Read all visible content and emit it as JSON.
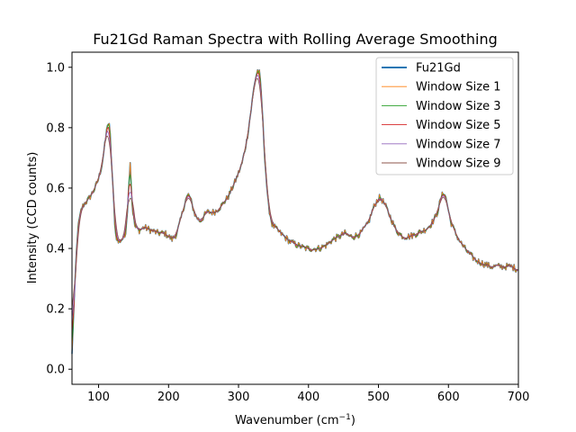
{
  "chart_data": {
    "type": "line",
    "title": "Fu21Gd Raman Spectra with Rolling Average Smoothing",
    "xlabel_base": "Wavenumber (cm",
    "xlabel_sup": "−1",
    "xlabel_end": ")",
    "ylabel": "Intensity (CCD counts)",
    "xlim": [
      62,
      700
    ],
    "ylim": [
      -0.05,
      1.05
    ],
    "xticks": [
      100,
      200,
      300,
      400,
      500,
      600,
      700
    ],
    "yticks": [
      0.0,
      0.2,
      0.4,
      0.6,
      0.8,
      1.0
    ],
    "ytick_labels": [
      "0.0",
      "0.2",
      "0.4",
      "0.6",
      "0.8",
      "1.0"
    ],
    "grid": false,
    "legend_position": "top-right",
    "base_curve": {
      "x": [
        62,
        65,
        68,
        71,
        75,
        80,
        85,
        90,
        95,
        100,
        105,
        110,
        113,
        116,
        120,
        124,
        128,
        133,
        138,
        142,
        145,
        148,
        152,
        158,
        165,
        175,
        185,
        195,
        205,
        212,
        218,
        224,
        229,
        233,
        238,
        245,
        255,
        265,
        275,
        285,
        295,
        305,
        312,
        318,
        323,
        327,
        330,
        333,
        337,
        342,
        348,
        355,
        365,
        375,
        385,
        395,
        405,
        415,
        425,
        435,
        445,
        452,
        458,
        465,
        475,
        485,
        492,
        498,
        503,
        510,
        518,
        525,
        535,
        545,
        555,
        565,
        575,
        583,
        590,
        594,
        598,
        603,
        610,
        620,
        630,
        640,
        650,
        660,
        670,
        680,
        690,
        700
      ],
      "y": [
        0.05,
        0.22,
        0.38,
        0.48,
        0.53,
        0.55,
        0.56,
        0.58,
        0.6,
        0.63,
        0.68,
        0.76,
        0.82,
        0.8,
        0.62,
        0.45,
        0.42,
        0.43,
        0.44,
        0.55,
        0.7,
        0.54,
        0.47,
        0.46,
        0.47,
        0.46,
        0.45,
        0.45,
        0.43,
        0.45,
        0.5,
        0.56,
        0.58,
        0.55,
        0.51,
        0.49,
        0.52,
        0.52,
        0.54,
        0.57,
        0.62,
        0.68,
        0.76,
        0.86,
        0.95,
        0.99,
        0.98,
        0.9,
        0.72,
        0.55,
        0.48,
        0.46,
        0.44,
        0.42,
        0.41,
        0.4,
        0.4,
        0.4,
        0.41,
        0.43,
        0.44,
        0.45,
        0.44,
        0.44,
        0.45,
        0.48,
        0.53,
        0.56,
        0.57,
        0.54,
        0.5,
        0.46,
        0.44,
        0.44,
        0.45,
        0.46,
        0.48,
        0.51,
        0.57,
        0.59,
        0.55,
        0.49,
        0.45,
        0.41,
        0.38,
        0.36,
        0.35,
        0.34,
        0.34,
        0.34,
        0.34,
        0.33
      ]
    },
    "series": [
      {
        "name": "Fu21Gd",
        "color": "#1f77b4",
        "window": 0
      },
      {
        "name": "Window Size 1",
        "color": "#ff7f0e",
        "window": 1
      },
      {
        "name": "Window Size 3",
        "color": "#2ca02c",
        "window": 3
      },
      {
        "name": "Window Size 5",
        "color": "#d62728",
        "window": 5
      },
      {
        "name": "Window Size 7",
        "color": "#9467bd",
        "window": 7
      },
      {
        "name": "Window Size 9",
        "color": "#8c564b",
        "window": 9
      }
    ]
  }
}
